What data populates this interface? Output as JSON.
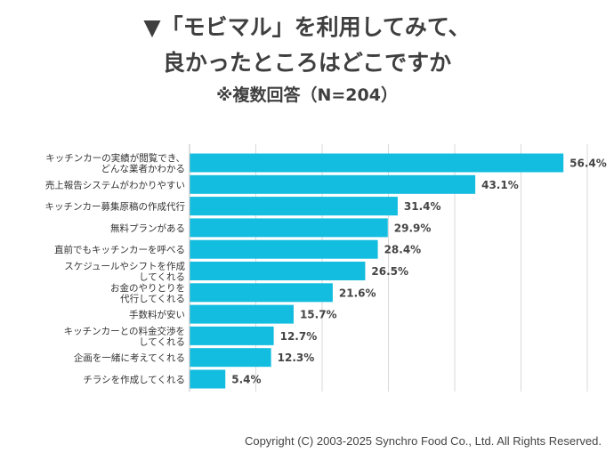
{
  "title_line1": "▼「モビマル」を利用してみて、",
  "title_line2": "良かったところはどこですか",
  "subtitle": "※複数回答（N=204）",
  "footer": "Copyright (C) 2003-2025  Synchro Food Co., Ltd. All Rights Reserved.",
  "colors": {
    "bar": "#12bde0",
    "grid": "#d9d9d9"
  },
  "chart_data": {
    "type": "bar",
    "orientation": "horizontal",
    "categories": [
      [
        "キッチンカーの実績が閲覧でき、",
        "どんな業者かわかる"
      ],
      [
        "売上報告システムがわかりやすい"
      ],
      [
        "キッチンカー募集原稿の作成代行"
      ],
      [
        "無料プランがある"
      ],
      [
        "直前でもキッチンカーを呼べる"
      ],
      [
        "スケジュールやシフトを作成",
        "してくれる"
      ],
      [
        "お金のやりとりを",
        "代行してくれる"
      ],
      [
        "手数料が安い"
      ],
      [
        "キッチンカーとの料金交渉を",
        "してくれる"
      ],
      [
        "企画を一緒に考えてくれる"
      ],
      [
        "チラシを作成してくれる"
      ]
    ],
    "values": [
      56.4,
      43.1,
      31.4,
      29.9,
      28.4,
      26.5,
      21.6,
      15.7,
      12.7,
      12.3,
      5.4
    ],
    "value_labels": [
      "56.4%",
      "43.1%",
      "31.4%",
      "29.9%",
      "28.4%",
      "26.5%",
      "21.6%",
      "15.7%",
      "12.7%",
      "12.3%",
      "5.4%"
    ],
    "xlim": [
      0,
      60
    ],
    "grid": true
  }
}
